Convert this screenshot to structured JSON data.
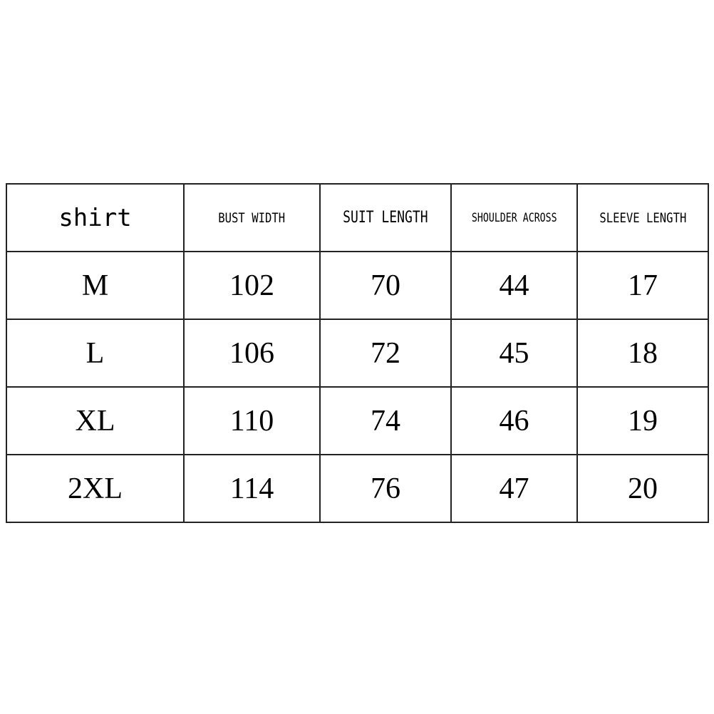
{
  "table": {
    "title": "shirt",
    "headers": [
      "BUST WIDTH",
      "SUIT LENGTH",
      "SHOULDER ACROSS",
      "SLEEVE LENGTH"
    ],
    "rows": [
      {
        "size": "M",
        "values": [
          "102",
          "70",
          "44",
          "17"
        ]
      },
      {
        "size": "L",
        "values": [
          "106",
          "72",
          "45",
          "18"
        ]
      },
      {
        "size": "XL",
        "values": [
          "110",
          "74",
          "46",
          "19"
        ]
      },
      {
        "size": "2XL",
        "values": [
          "114",
          "76",
          "47",
          "20"
        ]
      }
    ]
  }
}
